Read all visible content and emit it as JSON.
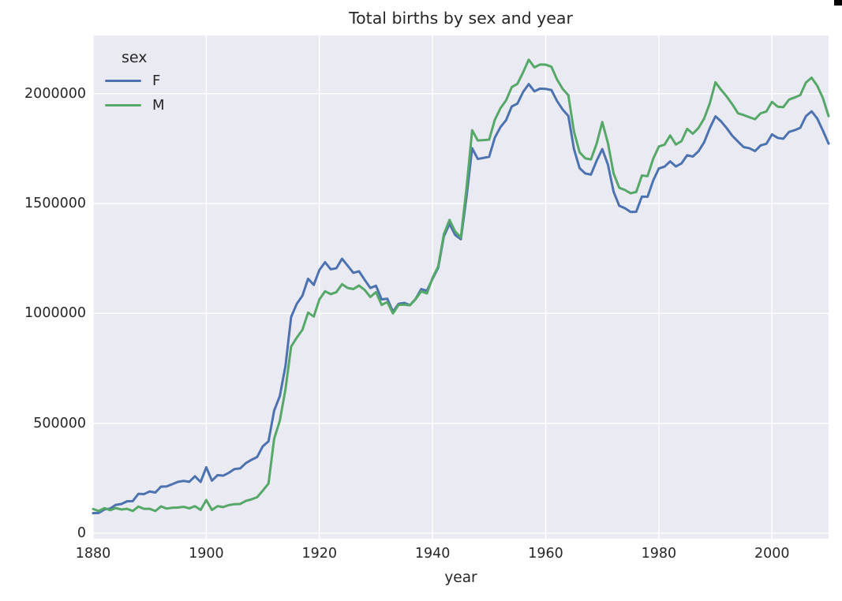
{
  "figure": {
    "colors": {
      "background": "#ffffff",
      "plot_background": "#eaeaf2",
      "grid": "#ffffff",
      "text": "#262626",
      "series_f": "#4c72b0",
      "series_m": "#55a868",
      "artifact": "#000000"
    }
  },
  "chart_data": {
    "type": "line",
    "title": "Total births by sex and year",
    "xlabel": "year",
    "ylabel": "",
    "grid": true,
    "legend": {
      "title": "sex",
      "position": "upper-left"
    },
    "xlim": [
      1880,
      2010
    ],
    "ylim": [
      -25000,
      2265000
    ],
    "xticks": [
      1880,
      1900,
      1920,
      1940,
      1960,
      1980,
      2000
    ],
    "yticks": [
      0,
      500000,
      1000000,
      1500000,
      2000000
    ],
    "x_start": 1880,
    "x_step": 1,
    "series": [
      {
        "name": "F",
        "color": "#4c72b0",
        "values": [
          91000,
          92000,
          108000,
          112000,
          129000,
          133000,
          145000,
          146000,
          179000,
          178000,
          190000,
          185000,
          212000,
          213000,
          223000,
          234000,
          238000,
          234000,
          259000,
          233000,
          300000,
          239000,
          264000,
          262000,
          275000,
          292000,
          295000,
          319000,
          334000,
          347000,
          396000,
          418000,
          558000,
          624000,
          761000,
          984000,
          1044000,
          1081000,
          1158000,
          1130000,
          1198000,
          1233000,
          1201000,
          1206000,
          1249000,
          1217000,
          1185000,
          1192000,
          1153000,
          1116000,
          1126000,
          1064000,
          1067000,
          1008000,
          1044000,
          1048000,
          1038000,
          1066000,
          1111000,
          1103000,
          1158000,
          1208000,
          1351000,
          1408000,
          1357000,
          1338000,
          1531000,
          1752000,
          1703000,
          1708000,
          1713000,
          1800000,
          1848000,
          1880000,
          1942000,
          1955000,
          2008000,
          2044000,
          2011000,
          2023000,
          2022000,
          2017000,
          1967000,
          1928000,
          1899000,
          1748000,
          1661000,
          1637000,
          1632000,
          1695000,
          1748000,
          1677000,
          1554000,
          1490000,
          1479000,
          1462000,
          1463000,
          1532000,
          1531000,
          1605000,
          1660000,
          1668000,
          1692000,
          1669000,
          1683000,
          1720000,
          1714000,
          1738000,
          1779000,
          1843000,
          1897000,
          1874000,
          1843000,
          1808000,
          1782000,
          1757000,
          1752000,
          1739000,
          1765000,
          1772000,
          1815000,
          1799000,
          1795000,
          1826000,
          1834000,
          1845000,
          1898000,
          1920000,
          1887000,
          1832000,
          1773000
        ]
      },
      {
        "name": "M",
        "color": "#55a868",
        "values": [
          110000,
          101000,
          114000,
          105000,
          114000,
          108000,
          111000,
          101000,
          121000,
          111000,
          111000,
          101000,
          122000,
          112000,
          116000,
          117000,
          120000,
          113000,
          123000,
          106000,
          151000,
          106000,
          123000,
          119000,
          128000,
          132000,
          133000,
          147000,
          154000,
          164000,
          194000,
          226000,
          430000,
          512000,
          655000,
          849000,
          890000,
          926000,
          1004000,
          986000,
          1064000,
          1101000,
          1088000,
          1097000,
          1133000,
          1116000,
          1111000,
          1127000,
          1107000,
          1075000,
          1097000,
          1039000,
          1052000,
          1000000,
          1039000,
          1040000,
          1037000,
          1065000,
          1101000,
          1091000,
          1162000,
          1214000,
          1361000,
          1426000,
          1373000,
          1346000,
          1570000,
          1834000,
          1787000,
          1789000,
          1791000,
          1881000,
          1934000,
          1970000,
          2030000,
          2045000,
          2097000,
          2155000,
          2120000,
          2133000,
          2132000,
          2123000,
          2065000,
          2022000,
          1993000,
          1827000,
          1733000,
          1706000,
          1701000,
          1773000,
          1871000,
          1775000,
          1637000,
          1572000,
          1562000,
          1547000,
          1553000,
          1628000,
          1625000,
          1704000,
          1760000,
          1768000,
          1810000,
          1769000,
          1784000,
          1840000,
          1818000,
          1844000,
          1887000,
          1956000,
          2052000,
          2018000,
          1987000,
          1951000,
          1911000,
          1903000,
          1893000,
          1884000,
          1911000,
          1919000,
          1963000,
          1941000,
          1939000,
          1973000,
          1983000,
          1994000,
          2051000,
          2073000,
          2036000,
          1980000,
          1898000
        ]
      }
    ]
  }
}
